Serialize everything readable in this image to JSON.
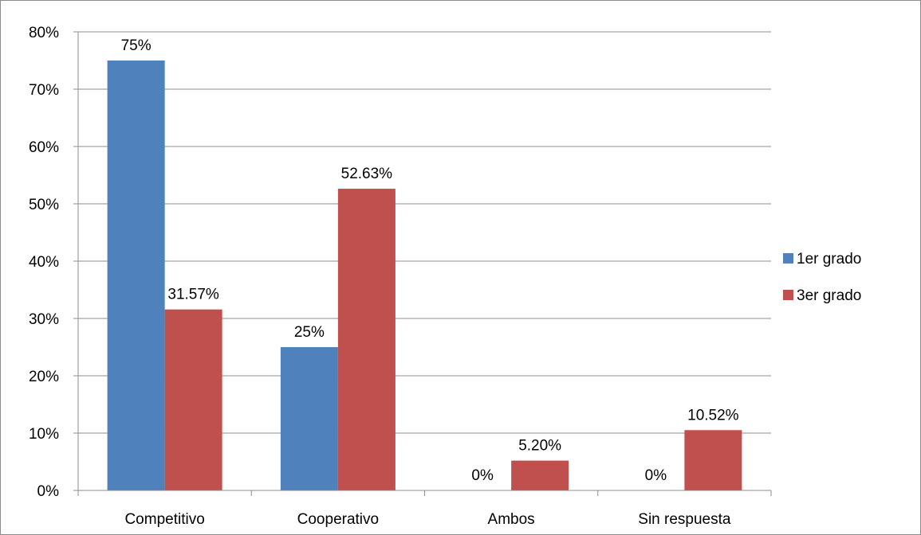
{
  "chart_data": {
    "type": "bar",
    "title": "",
    "xlabel": "",
    "ylabel": "",
    "categories": [
      "Competitivo",
      "Cooperativo",
      "Ambos",
      "Sin respuesta"
    ],
    "series": [
      {
        "name": "1er grado",
        "color": "#4f81bd",
        "values": [
          75,
          25,
          0,
          0
        ],
        "labels": [
          "75%",
          "25%",
          "0%",
          "0%"
        ]
      },
      {
        "name": "3er grado",
        "color": "#c0504d",
        "values": [
          31.57,
          52.63,
          5.2,
          10.52
        ],
        "labels": [
          "31.57%",
          "52.63%",
          "5.20%",
          "10.52%"
        ]
      }
    ],
    "ylim": [
      0,
      80
    ],
    "yticks": [
      0,
      10,
      20,
      30,
      40,
      50,
      60,
      70,
      80
    ],
    "ytick_labels": [
      "0%",
      "10%",
      "20%",
      "30%",
      "40%",
      "50%",
      "60%",
      "70%",
      "80%"
    ],
    "grid": true,
    "legend_position": "right"
  }
}
